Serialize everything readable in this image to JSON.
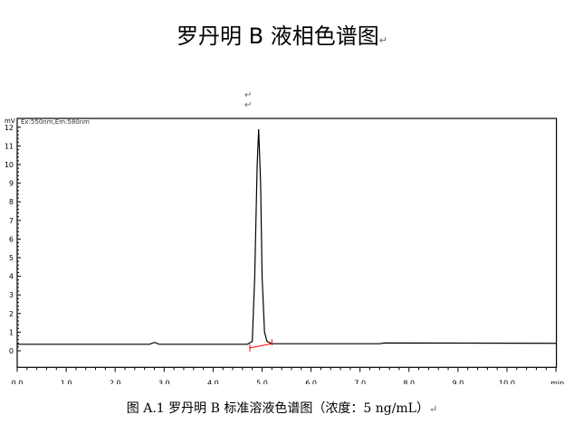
{
  "title": "罗丹明 B 液相色谱图",
  "return_mark": "↵",
  "caption": "图 A.1 罗丹明 B 标准溶液色谱图（浓度：5 ng/mL）",
  "chart_data": {
    "type": "line",
    "legend": "Ex:550nm,Em:580nm",
    "ylabel": "mV",
    "xlabel": "min",
    "xlim": [
      0,
      11
    ],
    "ylim": [
      -0.5,
      12.5
    ],
    "xticks": [
      "0.0",
      "1.0",
      "2.0",
      "3.0",
      "4.0",
      "5.0",
      "6.0",
      "7.0",
      "8.0",
      "9.0",
      "10.0"
    ],
    "yticks": [
      "0",
      "1",
      "2",
      "3",
      "4",
      "5",
      "6",
      "7",
      "8",
      "9",
      "10",
      "11",
      "12"
    ],
    "series": [
      {
        "x": [
          0,
          2.7,
          2.8,
          2.9,
          4.7,
          4.8,
          4.85,
          4.9,
          4.93,
          4.97,
          5.0,
          5.05,
          5.1,
          5.2,
          5.5,
          7.4,
          7.5,
          11
        ],
        "y": [
          0.35,
          0.35,
          0.45,
          0.35,
          0.35,
          0.5,
          4,
          10,
          11.9,
          9,
          4,
          1,
          0.5,
          0.38,
          0.38,
          0.38,
          0.42,
          0.4
        ],
        "color": "#000000"
      }
    ],
    "baseline": {
      "x": [
        4.75,
        5.2
      ],
      "y": [
        0.15,
        0.38
      ],
      "color": "#ff0000"
    }
  }
}
